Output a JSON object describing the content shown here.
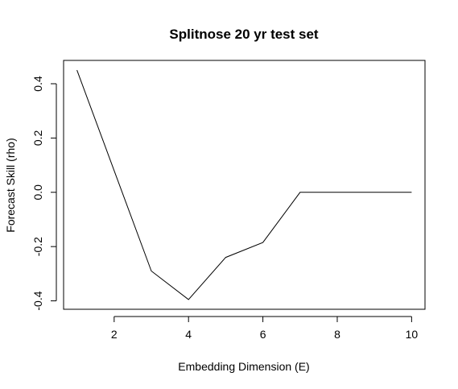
{
  "chart_data": {
    "type": "line",
    "title": "Splitnose 20 yr test set",
    "xlabel": "Embedding Dimension (E)",
    "ylabel": "Forecast Skill (rho)",
    "x": [
      1,
      2,
      3,
      4,
      5,
      6,
      7,
      8,
      9,
      10
    ],
    "series": [
      {
        "values": [
          0.45,
          0.08,
          -0.29,
          -0.395,
          -0.24,
          -0.185,
          0.0,
          0.0,
          0.0,
          0.0
        ]
      }
    ],
    "xlim": [
      0.64,
      10.36
    ],
    "ylim": [
      -0.431,
      0.486
    ],
    "xticks": [
      2,
      4,
      6,
      8,
      10
    ],
    "xtick_labels": [
      "2",
      "4",
      "6",
      "8",
      "10"
    ],
    "yticks": [
      -0.4,
      -0.2,
      0.0,
      0.2,
      0.4
    ],
    "ytick_labels": [
      "-0.4",
      "-0.2",
      "0.0",
      "0.2",
      "0.4"
    ],
    "grid": false,
    "legend": "none",
    "colors": {
      "line": "#000000",
      "background": "#ffffff"
    }
  }
}
